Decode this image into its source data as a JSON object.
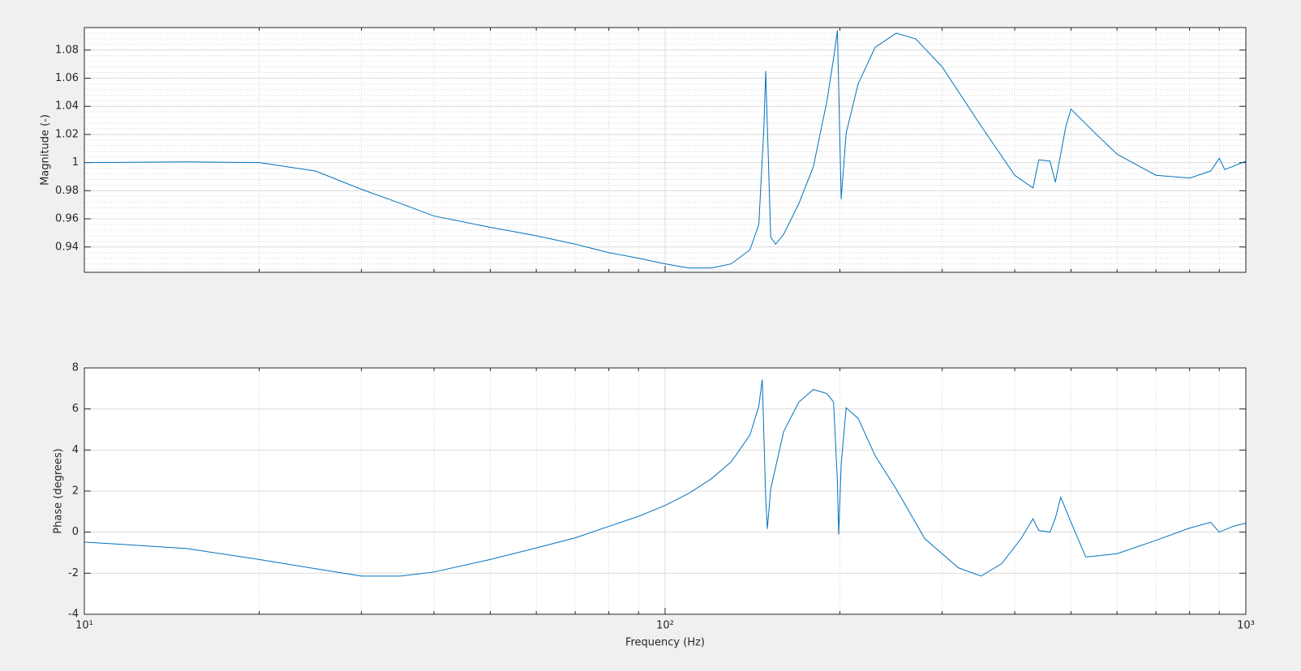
{
  "chart_data": [
    {
      "type": "line",
      "ylabel": "Magnitude (-)",
      "xscale": "log",
      "grid": true,
      "minor_grid": true,
      "xticklabels": false,
      "xlim": [
        10,
        1000
      ],
      "xticks": [
        10,
        100,
        1000
      ],
      "ylim": [
        0.922,
        1.096
      ],
      "yticks": [
        0.94,
        0.96,
        0.98,
        1,
        1.02,
        1.04,
        1.06,
        1.08
      ],
      "x": [
        10,
        15,
        20,
        25,
        30,
        35,
        40,
        50,
        60,
        70,
        80,
        90,
        100,
        110,
        120,
        130,
        140,
        145,
        148,
        149,
        150,
        152,
        155,
        160,
        170,
        180,
        190,
        195,
        198,
        201,
        205,
        215,
        230,
        250,
        270,
        300,
        350,
        400,
        430,
        440,
        460,
        470,
        490,
        500,
        550,
        600,
        700,
        800,
        870,
        900,
        920,
        1000
      ],
      "series": [
        {
          "color": "#0072bd",
          "values": [
            1.0,
            1.0005,
            1.0,
            0.994,
            0.981,
            0.971,
            0.962,
            0.954,
            0.948,
            0.942,
            0.936,
            0.932,
            0.928,
            0.925,
            0.925,
            0.928,
            0.938,
            0.956,
            1.026,
            1.065,
            1.026,
            0.947,
            0.942,
            0.949,
            0.971,
            0.997,
            1.044,
            1.074,
            1.094,
            0.974,
            1.021,
            1.056,
            1.082,
            1.092,
            1.088,
            1.068,
            1.026,
            0.991,
            0.982,
            1.002,
            1.001,
            0.986,
            1.026,
            1.038,
            1.021,
            1.006,
            0.991,
            0.989,
            0.994,
            1.003,
            0.995,
            1.001
          ]
        }
      ]
    },
    {
      "type": "line",
      "ylabel": "Phase (degrees)",
      "xlabel": "Frequency (Hz)",
      "xscale": "log",
      "grid": true,
      "minor_grid": true,
      "xticklabels": true,
      "xlim": [
        10,
        1000
      ],
      "xticks": [
        {
          "value": 10,
          "label": "10¹"
        },
        {
          "value": 100,
          "label": "10²"
        },
        {
          "value": 1000,
          "label": "10³"
        }
      ],
      "ylim": [
        -4,
        8
      ],
      "yticks": [
        -4,
        -2,
        0,
        2,
        4,
        6,
        8
      ],
      "x": [
        10,
        15,
        20,
        25,
        30,
        35,
        40,
        50,
        60,
        70,
        80,
        90,
        100,
        110,
        120,
        130,
        140,
        145,
        147,
        149,
        150,
        152,
        160,
        170,
        180,
        190,
        195,
        198,
        199,
        201,
        205,
        215,
        230,
        250,
        280,
        320,
        350,
        380,
        410,
        430,
        440,
        460,
        470,
        480,
        500,
        530,
        600,
        700,
        800,
        870,
        900,
        950,
        1000
      ],
      "series": [
        {
          "color": "#0072bd",
          "values": [
            -0.48,
            -0.8,
            -1.33,
            -1.78,
            -2.14,
            -2.14,
            -1.94,
            -1.33,
            -0.77,
            -0.28,
            0.28,
            0.77,
            1.3,
            1.9,
            2.59,
            3.43,
            4.73,
            6.14,
            7.43,
            1.7,
            0.16,
            2.1,
            4.9,
            6.34,
            6.95,
            6.75,
            6.34,
            2.5,
            -0.12,
            3.31,
            6.06,
            5.54,
            3.72,
            2.1,
            -0.32,
            -1.74,
            -2.14,
            -1.53,
            -0.32,
            0.65,
            0.08,
            0,
            0.69,
            1.7,
            0.48,
            -1.21,
            -1.05,
            -0.4,
            0.2,
            0.48,
            0,
            0.28,
            0.44
          ]
        }
      ]
    }
  ]
}
